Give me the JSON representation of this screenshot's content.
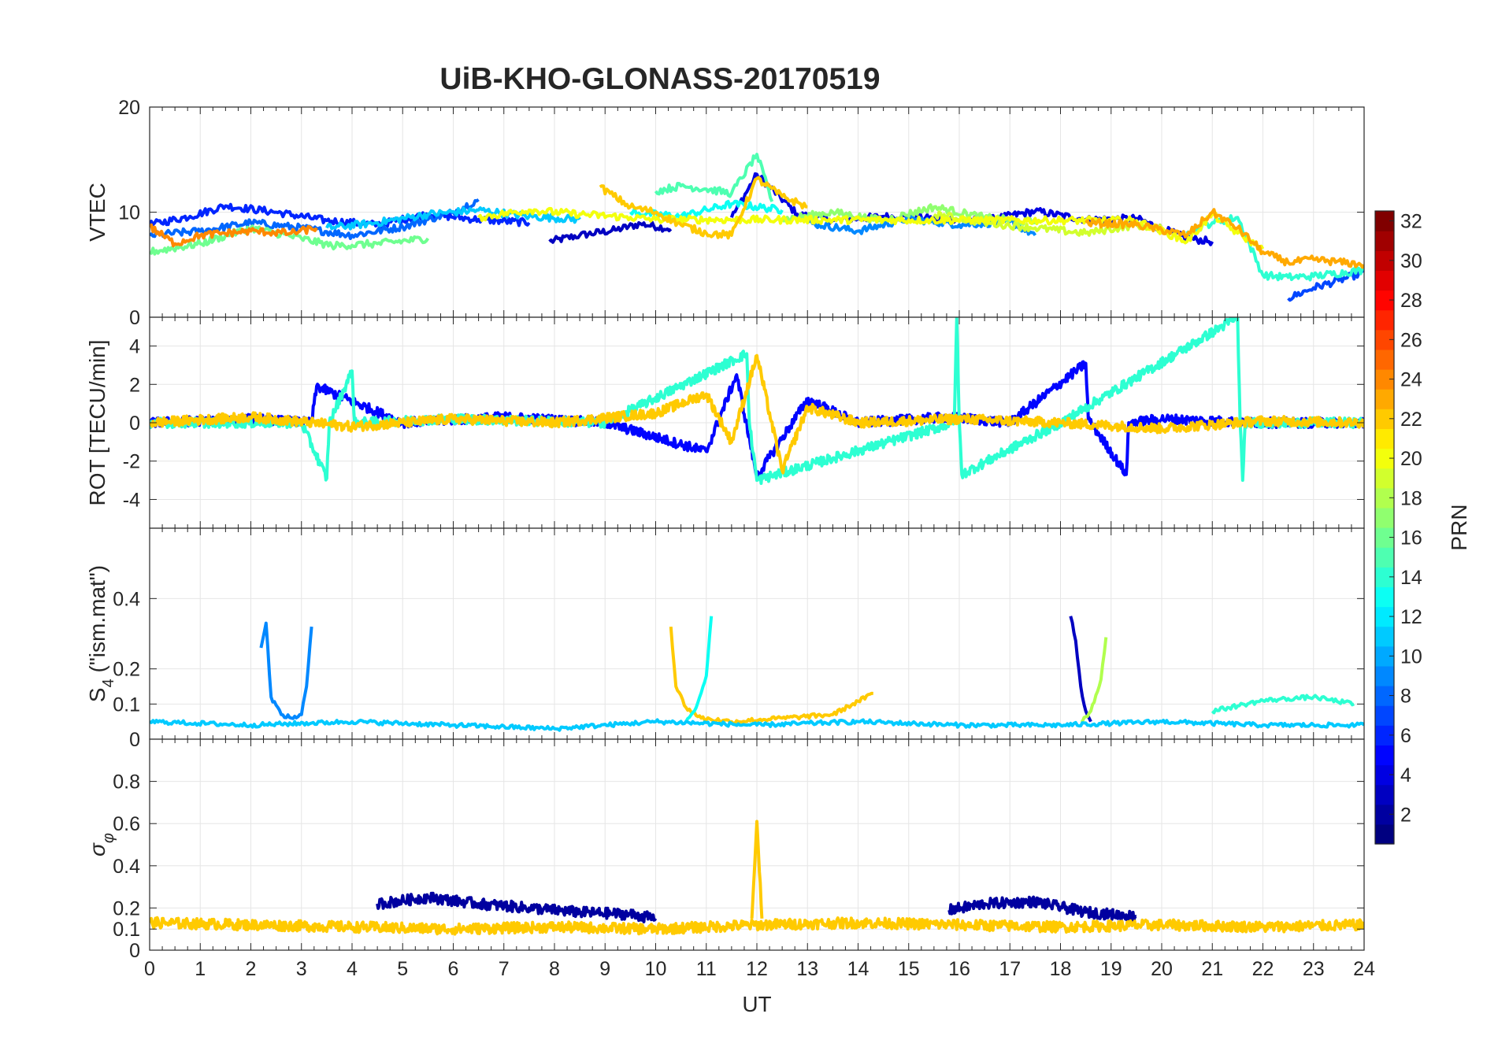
{
  "title": "UiB-KHO-GLONASS-20170519",
  "chart_data": [
    {
      "id": "vtec",
      "type": "line",
      "ylabel": "VTEC",
      "ylim": [
        0,
        20
      ],
      "yticks": [
        0,
        10,
        20
      ],
      "xlim": [
        0,
        24
      ],
      "grid": true,
      "description_of_series": "many overlapping satellite VTEC traces colored by PRN",
      "series": [
        {
          "name": "PRN 3",
          "prn": 3,
          "x": [
            7.9,
            8.5,
            9.2,
            9.7,
            10.3
          ],
          "values": [
            7.2,
            7.8,
            8.3,
            8.9,
            8.4
          ]
        },
        {
          "name": "PRN 4",
          "prn": 4,
          "x": [
            11.5,
            12.0,
            12.8,
            13.5,
            14.5,
            15.5,
            16.5,
            17.5,
            18.5,
            19.5,
            20.5,
            21.0
          ],
          "values": [
            9.5,
            13.6,
            9.8,
            9.2,
            9.6,
            9.4,
            9.2,
            10.1,
            9.3,
            9.4,
            7.5,
            7.2
          ]
        },
        {
          "name": "PRN 6",
          "prn": 6,
          "x": [
            0,
            0.8,
            1.5,
            2.5,
            3.5,
            4.5,
            5.5,
            6.5,
            7.5
          ],
          "values": [
            8.8,
            9.6,
            10.6,
            10.0,
            9.2,
            8.8,
            9.8,
            9.3,
            9.0
          ]
        },
        {
          "name": "PRN 7",
          "prn": 7,
          "x": [
            22.5,
            23.0,
            23.5,
            24.0
          ],
          "values": [
            1.8,
            2.8,
            3.5,
            4.3
          ]
        },
        {
          "name": "PRN 8",
          "prn": 8,
          "x": [
            0,
            1.0,
            2.0,
            3.0,
            4.0,
            5.0,
            6.0,
            6.5
          ],
          "values": [
            7.8,
            8.2,
            9.0,
            8.5,
            7.8,
            8.6,
            10.0,
            11.2
          ]
        },
        {
          "name": "PRN 9",
          "prn": 9,
          "x": [
            13.0,
            14.0,
            15.0,
            16.0,
            17.0,
            17.5
          ],
          "values": [
            9.0,
            8.2,
            9.4,
            8.8,
            9.1,
            7.8
          ]
        },
        {
          "name": "PRN 11",
          "prn": 11,
          "x": [
            3.5,
            4.5,
            5.5,
            6.5,
            7.5,
            8.5
          ],
          "values": [
            8.5,
            9.0,
            9.8,
            10.2,
            9.6,
            9.3
          ]
        },
        {
          "name": "PRN 13",
          "prn": 13,
          "x": [
            9.5,
            10.5,
            11.5,
            12.5
          ],
          "values": [
            10.0,
            9.6,
            10.8,
            10.2
          ]
        },
        {
          "name": "PRN 14",
          "prn": 14,
          "x": [
            20.5,
            21.0,
            21.5,
            22.0,
            22.5,
            23.0,
            24.0
          ],
          "values": [
            8.2,
            9.0,
            9.5,
            4.0,
            3.8,
            3.9,
            4.5
          ]
        },
        {
          "name": "PRN 15",
          "prn": 15,
          "x": [
            10.0,
            10.5,
            11.0,
            11.5,
            12.0,
            12.3
          ],
          "values": [
            12.0,
            12.5,
            12.2,
            11.8,
            15.5,
            11.0
          ]
        },
        {
          "name": "PRN 16",
          "prn": 16,
          "x": [
            0,
            1.0,
            2.0,
            3.0,
            3.6,
            4.5,
            5.5
          ],
          "values": [
            6.2,
            7.0,
            8.5,
            7.5,
            6.8,
            7.0,
            7.5
          ]
        },
        {
          "name": "PRN 17",
          "prn": 17,
          "x": [
            12.5,
            13.5,
            14.5,
            15.5,
            16.5,
            17.5
          ],
          "values": [
            9.3,
            10.0,
            9.2,
            10.5,
            9.5,
            9.0
          ]
        },
        {
          "name": "PRN 19",
          "prn": 19,
          "x": [
            15.5,
            16.5,
            17.5,
            18.5,
            19.5,
            20.0
          ],
          "values": [
            9.8,
            9.0,
            8.5,
            8.0,
            8.8,
            8.4
          ]
        },
        {
          "name": "PRN 20",
          "prn": 20,
          "x": [
            6.5,
            7.5,
            8.5,
            9.5,
            10.0,
            19.5,
            20.5,
            21.0,
            21.5,
            22.0
          ],
          "values": [
            9.5,
            10.2,
            9.8,
            9.5,
            9.3,
            9.2,
            7.2,
            9.8,
            8.0,
            6.5
          ]
        },
        {
          "name": "PRN 22",
          "prn": 22,
          "x": [
            8.9,
            9.5,
            10.0,
            10.5,
            11.0,
            11.5,
            12.0,
            12.5,
            13.0
          ],
          "values": [
            12.4,
            10.5,
            10.0,
            8.8,
            8.0,
            7.8,
            13.2,
            11.5,
            10.5
          ]
        },
        {
          "name": "PRN 23",
          "prn": 23,
          "x": [
            18.5,
            19.5,
            20.5,
            21.0,
            21.5,
            22.0,
            22.5,
            23.0,
            24.0
          ],
          "values": [
            9.0,
            8.8,
            7.8,
            10.0,
            8.5,
            6.2,
            5.2,
            5.5,
            5.0
          ]
        },
        {
          "name": "PRN 24",
          "prn": 24,
          "x": [
            0,
            0.5,
            1.0,
            2.0,
            2.8,
            3.3
          ],
          "values": [
            8.6,
            7.0,
            7.8,
            8.2,
            8.0,
            8.5
          ]
        }
      ]
    },
    {
      "id": "rot",
      "type": "line",
      "ylabel": "ROT [TECU/min]",
      "ylim": [
        -5.5,
        5.5
      ],
      "yticks": [
        -4,
        -2,
        0,
        2,
        4
      ],
      "xlim": [
        0,
        24
      ],
      "grid": true,
      "series": [
        {
          "name": "PRN 5",
          "prn": 5,
          "x": [
            0,
            2,
            3.2,
            3.3,
            5,
            7,
            9,
            11,
            11.6,
            12,
            13,
            14,
            15.8,
            17,
            18.5,
            18.55,
            19.3,
            19.35,
            20,
            22,
            24
          ],
          "values": [
            0,
            0.2,
            0,
            1.9,
            0,
            0.3,
            0,
            -1.5,
            2.5,
            -2.8,
            1.2,
            0,
            0.3,
            0,
            3.1,
            0.2,
            -2.7,
            0,
            0.2,
            0,
            0
          ]
        },
        {
          "name": "PRN 14",
          "prn": 14,
          "x": [
            0,
            3,
            3.5,
            3.55,
            4,
            4.05,
            6,
            9,
            11.8,
            11.85,
            12,
            15.9,
            15.95,
            16,
            16.05,
            18,
            21.5,
            21.55,
            21.6,
            21.65,
            24
          ],
          "values": [
            0,
            0,
            -2.9,
            0,
            2.7,
            0,
            0.2,
            0,
            3.6,
            0,
            -3.0,
            0,
            5.5,
            0,
            -2.7,
            0,
            5.5,
            0,
            -3.0,
            0,
            0
          ]
        },
        {
          "name": "PRN 22",
          "prn": 22,
          "x": [
            0,
            2,
            4,
            6,
            8,
            10,
            11,
            11.5,
            12,
            12.5,
            13,
            14,
            16,
            18,
            20,
            22,
            24
          ],
          "values": [
            0,
            0.3,
            -0.2,
            0.2,
            0,
            0.5,
            1.5,
            -1.0,
            3.5,
            -2.5,
            0.8,
            0,
            0.2,
            0,
            -0.3,
            0.1,
            0
          ]
        }
      ]
    },
    {
      "id": "s4",
      "type": "line",
      "ylabel": "S_4 (\"ism.mat\")",
      "ylim": [
        0,
        0.6
      ],
      "yticks": [
        0,
        0.1,
        0.2,
        0.4
      ],
      "xlim": [
        0,
        24
      ],
      "grid": true,
      "series": [
        {
          "name": "PRN 9",
          "prn": 9,
          "x": [
            2.2,
            2.3,
            2.4,
            2.6,
            2.8,
            3.0,
            3.1,
            3.2
          ],
          "values": [
            0.26,
            0.33,
            0.12,
            0.07,
            0.06,
            0.07,
            0.15,
            0.32
          ]
        },
        {
          "name": "PRN 3",
          "prn": 3,
          "x": [
            18.2,
            18.3,
            18.4,
            18.5,
            18.6
          ],
          "values": [
            0.35,
            0.28,
            0.15,
            0.08,
            0.05
          ]
        },
        {
          "name": "PRN 22",
          "prn": 22,
          "x": [
            10.3,
            10.4,
            10.6,
            10.9,
            11.5,
            12.5,
            13.5,
            14.3
          ],
          "values": [
            0.32,
            0.15,
            0.09,
            0.06,
            0.05,
            0.06,
            0.07,
            0.13
          ]
        },
        {
          "name": "PRN 13",
          "prn": 13,
          "x": [
            10.6,
            10.8,
            11.0,
            11.1
          ],
          "values": [
            0.05,
            0.09,
            0.18,
            0.35
          ]
        },
        {
          "name": "PRN 18",
          "prn": 18,
          "x": [
            18.4,
            18.6,
            18.8,
            18.9
          ],
          "values": [
            0.05,
            0.08,
            0.17,
            0.29
          ]
        },
        {
          "name": "PRN 14",
          "prn": 14,
          "x": [
            21,
            22,
            23,
            23.8
          ],
          "values": [
            0.08,
            0.11,
            0.12,
            0.1
          ]
        },
        {
          "name": "PRN 11",
          "prn": 11,
          "x": [
            0,
            2,
            4,
            6,
            8,
            10,
            12,
            14,
            16,
            18,
            20,
            22,
            24
          ],
          "values": [
            0.05,
            0.04,
            0.05,
            0.04,
            0.03,
            0.05,
            0.04,
            0.05,
            0.04,
            0.04,
            0.05,
            0.04,
            0.04
          ]
        }
      ]
    },
    {
      "id": "sigma",
      "type": "line",
      "ylabel": "σ_φ",
      "ylim": [
        0,
        1.0
      ],
      "yticks": [
        0,
        0.1,
        0.2,
        0.4,
        0.6,
        0.8
      ],
      "xlim": [
        0,
        24
      ],
      "xticks": [
        0,
        1,
        2,
        3,
        4,
        5,
        6,
        7,
        8,
        9,
        10,
        11,
        12,
        13,
        14,
        15,
        16,
        17,
        18,
        19,
        20,
        21,
        22,
        23,
        24
      ],
      "xlabel": "UT",
      "grid": true,
      "series": [
        {
          "name": "PRN 2",
          "prn": 2,
          "x": [
            4.5,
            5.5,
            6.5,
            7.5,
            8.5,
            9.5,
            10
          ],
          "values": [
            0.22,
            0.25,
            0.22,
            0.2,
            0.18,
            0.17,
            0.15
          ]
        },
        {
          "name": "PRN 2b",
          "prn": 2,
          "x": [
            15.8,
            16.5,
            17.5,
            18.5,
            19.5
          ],
          "values": [
            0.19,
            0.22,
            0.23,
            0.18,
            0.16
          ]
        },
        {
          "name": "PRN 22",
          "prn": 22,
          "x": [
            11.9,
            12.0,
            12.1
          ],
          "values": [
            0.15,
            0.61,
            0.15
          ]
        },
        {
          "name": "PRN 22b",
          "prn": 22,
          "x": [
            0,
            2,
            4,
            6,
            8,
            10,
            12,
            14,
            16,
            18,
            20,
            22,
            24
          ],
          "values": [
            0.13,
            0.12,
            0.11,
            0.1,
            0.11,
            0.1,
            0.12,
            0.13,
            0.12,
            0.11,
            0.12,
            0.11,
            0.12
          ]
        }
      ]
    }
  ],
  "colorbar": {
    "label": "PRN",
    "range": [
      1,
      32
    ],
    "ticks": [
      2,
      4,
      6,
      8,
      10,
      12,
      14,
      16,
      18,
      20,
      22,
      24,
      26,
      28,
      30,
      32
    ],
    "colormap": "jet"
  }
}
